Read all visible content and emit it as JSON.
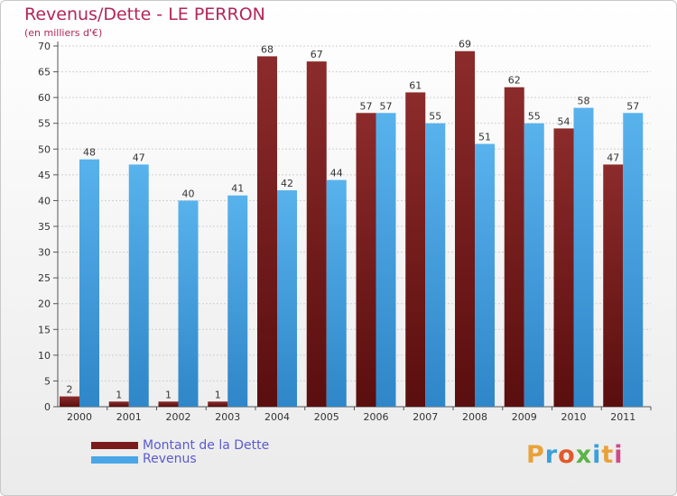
{
  "title": "Revenus/Dette - LE PERRON",
  "subtitle": "(en milliers d'€)",
  "legend": {
    "debt_label": "Montant de la Dette",
    "revenue_label": "Revenus"
  },
  "logo": {
    "text": "Proxiti"
  },
  "colors": {
    "debt": "#7a1c1c",
    "revenue": "#4aa6e6",
    "title": "#b2265a",
    "axis_text": "#333333"
  },
  "chart_data": {
    "type": "bar",
    "title": "Revenus/Dette - LE PERRON",
    "subtitle": "(en milliers d'€)",
    "xlabel": "",
    "ylabel": "",
    "ylim": [
      0,
      70
    ],
    "yticks": [
      0,
      5,
      10,
      15,
      20,
      25,
      30,
      35,
      40,
      45,
      50,
      55,
      60,
      65,
      70
    ],
    "grid": true,
    "legend_position": "bottom-left",
    "categories": [
      "2000",
      "2001",
      "2002",
      "2003",
      "2004",
      "2005",
      "2006",
      "2007",
      "2008",
      "2009",
      "2010",
      "2011"
    ],
    "series": [
      {
        "name": "Montant de la Dette",
        "values": [
          2,
          1,
          1,
          1,
          68,
          67,
          57,
          61,
          69,
          62,
          54,
          47
        ]
      },
      {
        "name": "Revenus",
        "values": [
          48,
          47,
          40,
          41,
          42,
          44,
          57,
          55,
          51,
          55,
          58,
          57
        ]
      }
    ]
  }
}
